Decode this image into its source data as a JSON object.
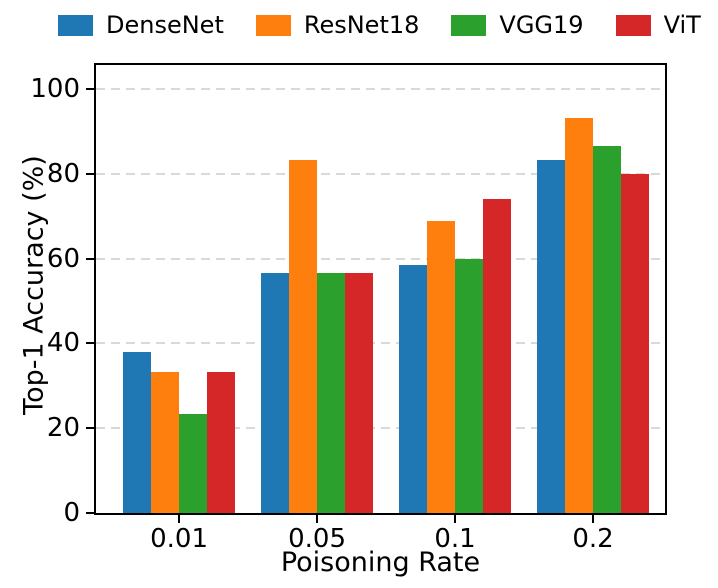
{
  "figure": {
    "background": "#ffffff",
    "text_color": "#000000"
  },
  "chart_data": {
    "type": "bar",
    "title": "",
    "xlabel": "Poisoning Rate",
    "ylabel": "Top-1 Accuracy (%)",
    "categories": [
      "0.01",
      "0.05",
      "0.1",
      "0.2"
    ],
    "series": [
      {
        "name": "DenseNet",
        "color": "#1f77b4",
        "values": [
          37.9,
          56.7,
          58.6,
          83.3
        ]
      },
      {
        "name": "ResNet18",
        "color": "#ff7f0e",
        "values": [
          33.3,
          83.3,
          69.0,
          93.3
        ]
      },
      {
        "name": "VGG19",
        "color": "#2ca02c",
        "values": [
          23.3,
          56.7,
          60.0,
          86.7
        ]
      },
      {
        "name": "ViT",
        "color": "#d62728",
        "values": [
          33.3,
          56.7,
          74.0,
          80.0
        ]
      }
    ],
    "yticks": [
      0,
      20,
      40,
      60,
      80,
      100
    ],
    "ytick_labels": [
      "0",
      "20",
      "40",
      "60",
      "80",
      "100"
    ],
    "ylim": [
      0,
      105.7
    ],
    "grid": {
      "axis": "y",
      "style": "dashed",
      "color": "#d9d9d9"
    },
    "legend": {
      "position": "top",
      "labels": [
        "DenseNet",
        "ResNet18",
        "VGG19",
        "ViT"
      ]
    }
  }
}
